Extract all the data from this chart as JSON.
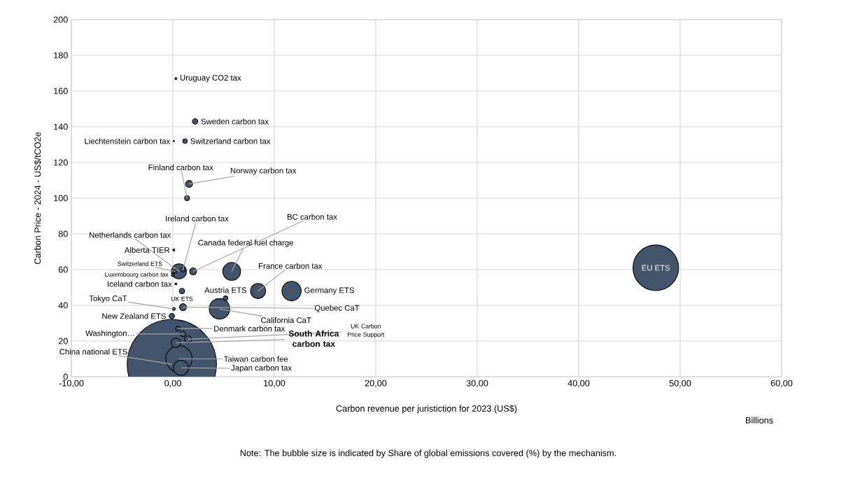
{
  "chart_data": {
    "type": "bubble",
    "xlabel": "Carbon revenue per juristiction for 2023 (US$)",
    "ylabel": "Carbon Price - 2024 - US$/tCO2e",
    "xlim": [
      -10,
      60
    ],
    "xticks": [
      {
        "value": -10,
        "label": "-10,00"
      },
      {
        "value": 0,
        "label": "0,00"
      },
      {
        "value": 10,
        "label": "10,00"
      },
      {
        "value": 20,
        "label": "20,00"
      },
      {
        "value": 30,
        "label": "30,00"
      },
      {
        "value": 40,
        "label": "40,00"
      },
      {
        "value": 50,
        "label": "50,00"
      },
      {
        "value": 60,
        "label": "60,00"
      }
    ],
    "ylim": [
      0,
      200
    ],
    "yticks": [
      0,
      20,
      40,
      60,
      80,
      100,
      120,
      140,
      160,
      180,
      200
    ],
    "grid": true,
    "color": "#44546a",
    "x": [
      0.3,
      2.2,
      0.1,
      1.2,
      1.6,
      1.4,
      0.6,
      0.1,
      1.0,
      2.0,
      5.8,
      0.2,
      0.0,
      0.3,
      0.9,
      5.2,
      8.4,
      11.7,
      47.6,
      0.1,
      -0.1,
      1.0,
      4.6,
      0.5,
      1.0,
      1.5,
      0.3,
      -0.1,
      0.6,
      0.8
    ],
    "values": [
      167,
      143,
      132,
      132,
      108,
      100,
      59,
      71,
      60,
      59,
      59,
      59,
      57,
      52,
      48,
      44,
      48,
      48,
      61,
      38,
      34,
      39,
      38,
      27,
      24,
      21,
      19,
      7,
      10,
      5
    ],
    "sizes": [
      0.0005,
      0.006,
      0.0002,
      0.004,
      0.009,
      0.005,
      0.034,
      0.0005,
      0.004,
      0.009,
      0.046,
      0.002,
      0.001,
      0.0005,
      0.006,
      0.004,
      0.034,
      0.053,
      0.27,
      0.001,
      0.006,
      0.009,
      0.06,
      0.004,
      0.006,
      0.009,
      0.015,
      1,
      0.095,
      0.034
    ],
    "annotations": [
      {
        "text": "Uruguay CO2 tax",
        "x": 0.3,
        "y": 167
      },
      {
        "text": "Sweden carbon tax",
        "x": 2.2,
        "y": 143
      },
      {
        "text": "Liechtenstein carbon tax",
        "x": 0.1,
        "y": 132
      },
      {
        "text": "Switzerland carbon tax",
        "x": 1.2,
        "y": 132
      },
      {
        "text": "Norway carbon tax",
        "x": 1.6,
        "y": 108
      },
      {
        "text": "Finland carbon tax",
        "x": 1.4,
        "y": 100
      },
      {
        "text": "Netherlands carbon tax",
        "x": 0.6,
        "y": 59
      },
      {
        "text": "Alberta TIER",
        "x": 0.1,
        "y": 71
      },
      {
        "text": "Ireland carbon tax",
        "x": 1.0,
        "y": 60
      },
      {
        "text": "BC carbon tax",
        "x": 2.0,
        "y": 59
      },
      {
        "text": "Canada federal fuel charge",
        "x": 5.8,
        "y": 59
      },
      {
        "text": "Switzerland ETS",
        "x": 0.2,
        "y": 59
      },
      {
        "text": "Luxembourg carbon tax",
        "x": 0.0,
        "y": 57
      },
      {
        "text": "Iceland carbon tax",
        "x": 0.3,
        "y": 52
      },
      {
        "text": "UK ETS",
        "x": 0.9,
        "y": 48
      },
      {
        "text": "Austria ETS",
        "x": 5.2,
        "y": 44
      },
      {
        "text": "France carbon tax",
        "x": 8.4,
        "y": 48
      },
      {
        "text": "Germany ETS",
        "x": 11.7,
        "y": 48
      },
      {
        "text": "EU ETS",
        "x": 47.6,
        "y": 61
      },
      {
        "text": "Tokyo CaT",
        "x": 0.1,
        "y": 38
      },
      {
        "text": "New Zealand ETS",
        "x": -0.1,
        "y": 34
      },
      {
        "text": "Quebec CaT",
        "x": 1.0,
        "y": 39
      },
      {
        "text": "California CaT",
        "x": 4.6,
        "y": 38
      },
      {
        "text": "Denmark carbon tax",
        "x": 0.5,
        "y": 27
      },
      {
        "text": "Washington…",
        "x": 1.0,
        "y": 24
      },
      {
        "text": "UK Carbon Price Support",
        "x": 1.5,
        "y": 21
      },
      {
        "text": "South Africa carbon tax",
        "x": 0.3,
        "y": 19
      },
      {
        "text": "China national ETS",
        "x": -0.1,
        "y": 7
      },
      {
        "text": "Taiwan carbon fee",
        "x": 0.6,
        "y": 10
      },
      {
        "text": "Japan carbon tax",
        "x": 0.8,
        "y": 5
      },
      "Billions",
      "Note: The bubble size is indicated by Share of global emissions covered  (%) by the mechanism."
    ]
  }
}
